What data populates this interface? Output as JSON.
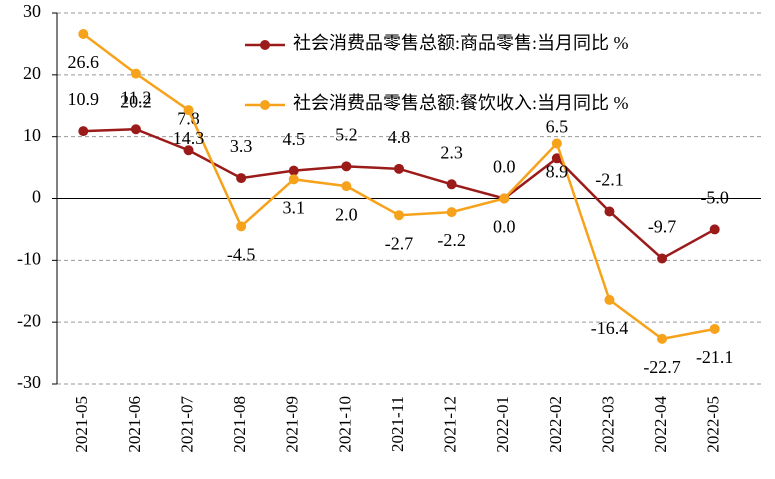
{
  "chart_data": {
    "type": "line",
    "categories": [
      "2021-05",
      "2021-06",
      "2021-07",
      "2021-08",
      "2021-09",
      "2021-10",
      "2021-11",
      "2021-12",
      "2022-01",
      "2022-02",
      "2022-03",
      "2022-04",
      "2022-05"
    ],
    "series": [
      {
        "name": "社会消费品零售总额:商品零售:当月同比 %",
        "color": "#9b1b1b",
        "values": [
          10.9,
          11.2,
          7.8,
          3.3,
          4.5,
          5.2,
          4.8,
          2.3,
          0,
          6.5,
          -2.1,
          -9.7,
          -5
        ],
        "value_labels": [
          "10.9",
          "11.2",
          "7.8",
          "3.3",
          "4.5",
          "5.2",
          "4.8",
          "2.3",
          "0.0",
          "6.5",
          "-2.1",
          "-9.7",
          "-5.0"
        ]
      },
      {
        "name": "社会消费品零售总额:餐饮收入:当月同比 %",
        "color": "#f7a21b",
        "values": [
          26.6,
          20.2,
          14.3,
          -4.5,
          3.1,
          2,
          -2.7,
          -2.2,
          0,
          8.9,
          -16.4,
          -22.7,
          -21.1
        ],
        "value_labels": [
          "26.6",
          "20.2",
          "14.3",
          "-4.5",
          "3.1",
          "2.0",
          "-2.7",
          "-2.2",
          "0.0",
          "8.9",
          "-16.4",
          "-22.7",
          "-21.1"
        ]
      }
    ],
    "ylim": [
      -30,
      30
    ],
    "yticks": [
      -30,
      -20,
      -10,
      0,
      10,
      20,
      30
    ],
    "grid": true
  }
}
